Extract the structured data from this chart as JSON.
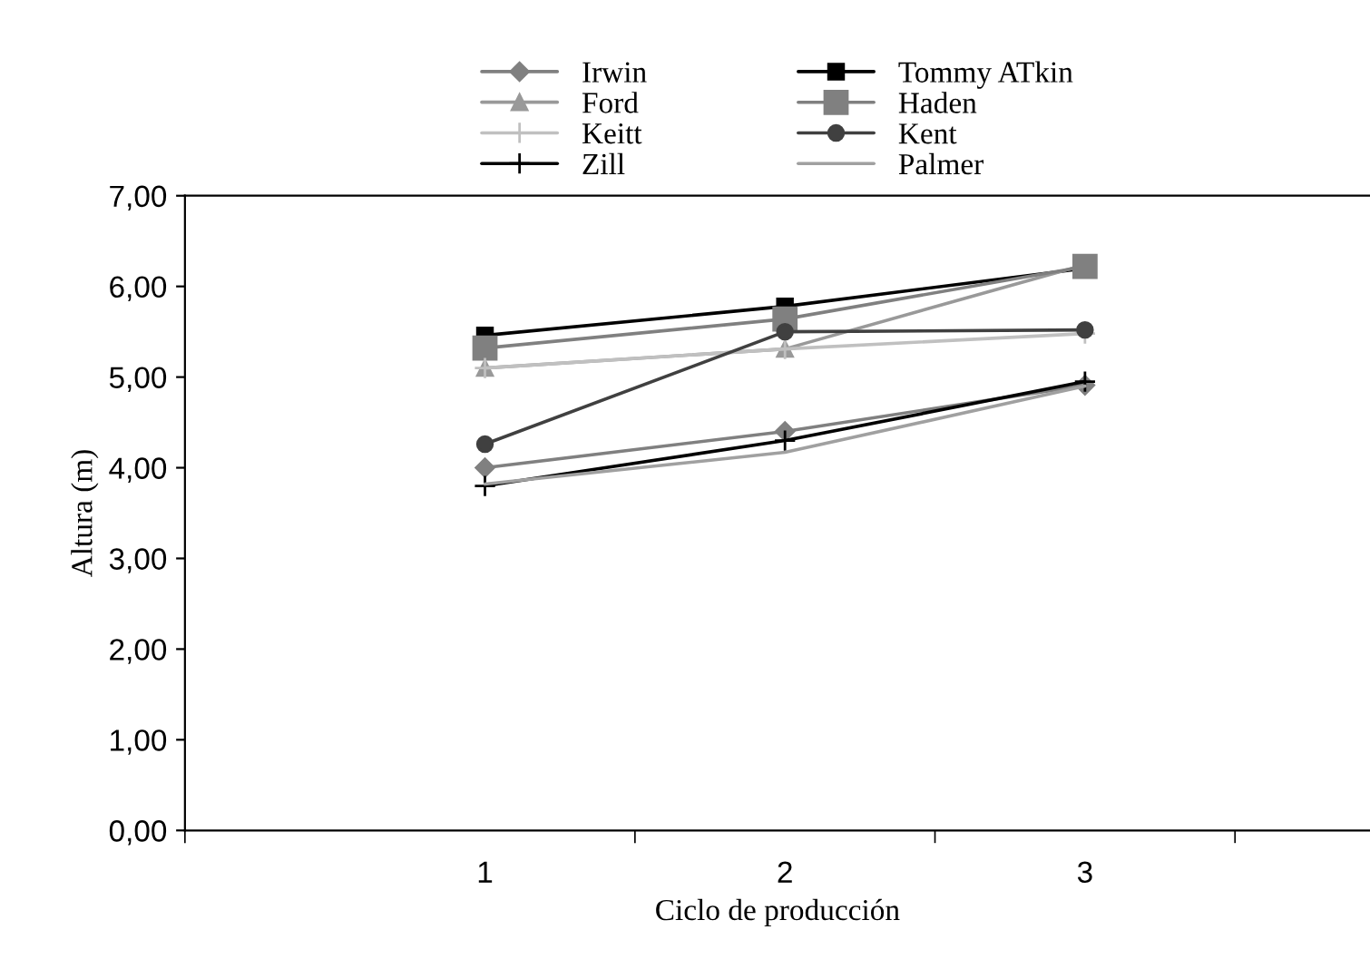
{
  "chart_data": {
    "type": "line",
    "xlabel": "Ciclo de producción",
    "ylabel": "Altura (m)",
    "categories": [
      "1",
      "2",
      "3"
    ],
    "series": [
      {
        "name": "Irwin",
        "color": "#808080",
        "marker": "diamond",
        "values": [
          4.0,
          4.4,
          4.91
        ]
      },
      {
        "name": "Tommy ATkin",
        "color": "#000000",
        "marker": "square",
        "values": [
          5.46,
          5.78,
          6.2
        ]
      },
      {
        "name": "Ford",
        "color": "#999999",
        "marker": "triangle",
        "values": [
          5.1,
          5.31,
          6.24
        ]
      },
      {
        "name": "Haden",
        "color": "#808080",
        "marker": "square",
        "values": [
          5.32,
          5.64,
          6.22
        ]
      },
      {
        "name": "Keitt",
        "color": "#c0c0c0",
        "marker": "cross",
        "values": [
          5.1,
          5.31,
          5.48
        ]
      },
      {
        "name": "Kent",
        "color": "#404040",
        "marker": "circle",
        "values": [
          4.26,
          5.5,
          5.52
        ]
      },
      {
        "name": "Zill",
        "color": "#000000",
        "marker": "cross",
        "values": [
          3.8,
          4.3,
          4.95
        ]
      },
      {
        "name": "Palmer",
        "color": "#a0a0a0",
        "marker": "none",
        "values": [
          3.82,
          4.17,
          4.9
        ]
      }
    ],
    "ylim": [
      0,
      7
    ],
    "yticks": [
      {
        "value": 0,
        "label": "0,00"
      },
      {
        "value": 1,
        "label": "1,00"
      },
      {
        "value": 2,
        "label": "2,00"
      },
      {
        "value": 3,
        "label": "3,00"
      },
      {
        "value": 4,
        "label": "4,00"
      },
      {
        "value": 5,
        "label": "5,00"
      },
      {
        "value": 6,
        "label": "6,00"
      },
      {
        "value": 7,
        "label": "7,00"
      }
    ],
    "grid": false,
    "legend": "top"
  }
}
